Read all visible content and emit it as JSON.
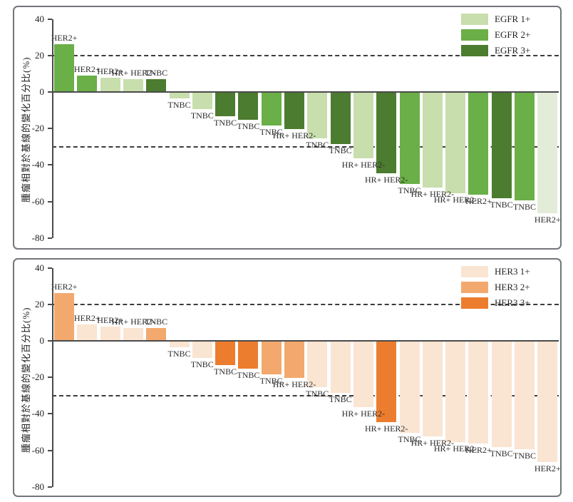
{
  "figure": {
    "background": "#ffffff",
    "border_color": "#74747c"
  },
  "chart_data": [
    {
      "type": "bar",
      "panel": "EGFR",
      "ylabel": "腫瘤相對於基線的變化百分比(%)",
      "ylim": [
        -80,
        40
      ],
      "yticks": [
        "40",
        "20",
        "0",
        "-20",
        "-40",
        "-60",
        "-80"
      ],
      "ytick_values": [
        40,
        20,
        0,
        -20,
        -40,
        -60,
        -80
      ],
      "reference_lines": [
        20,
        -30
      ],
      "grid": "off",
      "legend_position": "top-right",
      "legend": [
        {
          "label": "EGFR 1+",
          "color": "#C8DEAD"
        },
        {
          "label": "EGFR 2+",
          "color": "#6AAF47"
        },
        {
          "label": "EGFR 3+",
          "color": "#4C7C2F"
        }
      ],
      "level_colors": {
        "0": "#E3ECD9",
        "1+": "#C8DEAD",
        "2+": "#6AAF47",
        "3+": "#4C7C2F"
      },
      "bars": [
        {
          "label": "HER2+",
          "value": 26,
          "level": "2+"
        },
        {
          "label": "HER2+",
          "value": 9,
          "level": "2+"
        },
        {
          "label": "HER2+",
          "value": 8,
          "level": "1+"
        },
        {
          "label": "HR+ HER2-",
          "value": 7,
          "level": "1+"
        },
        {
          "label": "TNBC",
          "value": 7,
          "level": "3+"
        },
        {
          "label": "TNBC",
          "value": -3,
          "level": "1+"
        },
        {
          "label": "TNBC",
          "value": -9,
          "level": "1+"
        },
        {
          "label": "TNBC",
          "value": -13,
          "level": "3+"
        },
        {
          "label": "TNBC",
          "value": -15,
          "level": "3+"
        },
        {
          "label": "TNBC",
          "value": -18,
          "level": "2+"
        },
        {
          "label": "HR+ HER2-",
          "value": -20,
          "level": "3+"
        },
        {
          "label": "TNBC",
          "value": -25,
          "level": "1+"
        },
        {
          "label": "TNBC",
          "value": -28,
          "level": "3+"
        },
        {
          "label": "HR+ HER2-",
          "value": -36,
          "level": "1+"
        },
        {
          "label": "HR+ HER2-",
          "value": -44,
          "level": "3+"
        },
        {
          "label": "TNBC",
          "value": -50,
          "level": "2+"
        },
        {
          "label": "HR+ HER2-",
          "value": -52,
          "level": "1+"
        },
        {
          "label": "HR+ HER2-",
          "value": -55,
          "level": "1+"
        },
        {
          "label": "HER2+",
          "value": -56,
          "level": "2+"
        },
        {
          "label": "TNBC",
          "value": -58,
          "level": "3+"
        },
        {
          "label": "TNBC",
          "value": -59,
          "level": "2+"
        },
        {
          "label": "HER2+",
          "value": -66,
          "level": "0"
        }
      ]
    },
    {
      "type": "bar",
      "panel": "HER3",
      "ylabel": "腫瘤相對於基線的變化百分比(%)",
      "ylim": [
        -80,
        40
      ],
      "yticks": [
        "40",
        "20",
        "0",
        "-20",
        "-40",
        "-60",
        "-80"
      ],
      "ytick_values": [
        40,
        20,
        0,
        -20,
        -40,
        -60,
        -80
      ],
      "reference_lines": [
        20,
        -30
      ],
      "grid": "off",
      "legend_position": "top-right",
      "legend": [
        {
          "label": "HER3 1+",
          "color": "#FAE4D2"
        },
        {
          "label": "HER3 2+",
          "color": "#F3A96E"
        },
        {
          "label": "HER3 3+",
          "color": "#EC7D2E"
        }
      ],
      "level_colors": {
        "1+": "#FAE4D2",
        "2+": "#F3A96E",
        "3+": "#EC7D2E"
      },
      "bars": [
        {
          "label": "HER2+",
          "value": 26,
          "level": "2+"
        },
        {
          "label": "HER2+",
          "value": 9,
          "level": "1+"
        },
        {
          "label": "HER2+",
          "value": 8,
          "level": "1+"
        },
        {
          "label": "HR+ HER2-",
          "value": 7,
          "level": "1+"
        },
        {
          "label": "TNBC",
          "value": 7,
          "level": "2+"
        },
        {
          "label": "TNBC",
          "value": -3,
          "level": "1+"
        },
        {
          "label": "TNBC",
          "value": -9,
          "level": "1+"
        },
        {
          "label": "TNBC",
          "value": -13,
          "level": "3+"
        },
        {
          "label": "TNBC",
          "value": -15,
          "level": "3+"
        },
        {
          "label": "TNBC",
          "value": -18,
          "level": "2+"
        },
        {
          "label": "HR+ HER2-",
          "value": -20,
          "level": "2+"
        },
        {
          "label": "TNBC",
          "value": -25,
          "level": "1+"
        },
        {
          "label": "TNBC",
          "value": -28,
          "level": "1+"
        },
        {
          "label": "HR+ HER2-",
          "value": -36,
          "level": "1+"
        },
        {
          "label": "HR+ HER2-",
          "value": -44,
          "level": "3+"
        },
        {
          "label": "TNBC",
          "value": -50,
          "level": "1+"
        },
        {
          "label": "HR+ HER2-",
          "value": -52,
          "level": "1+"
        },
        {
          "label": "HR+ HER2-",
          "value": -55,
          "level": "1+"
        },
        {
          "label": "HER2+",
          "value": -56,
          "level": "1+"
        },
        {
          "label": "TNBC",
          "value": -58,
          "level": "1+"
        },
        {
          "label": "TNBC",
          "value": -59,
          "level": "1+"
        },
        {
          "label": "HER2+",
          "value": -66,
          "level": "1+"
        }
      ]
    }
  ]
}
